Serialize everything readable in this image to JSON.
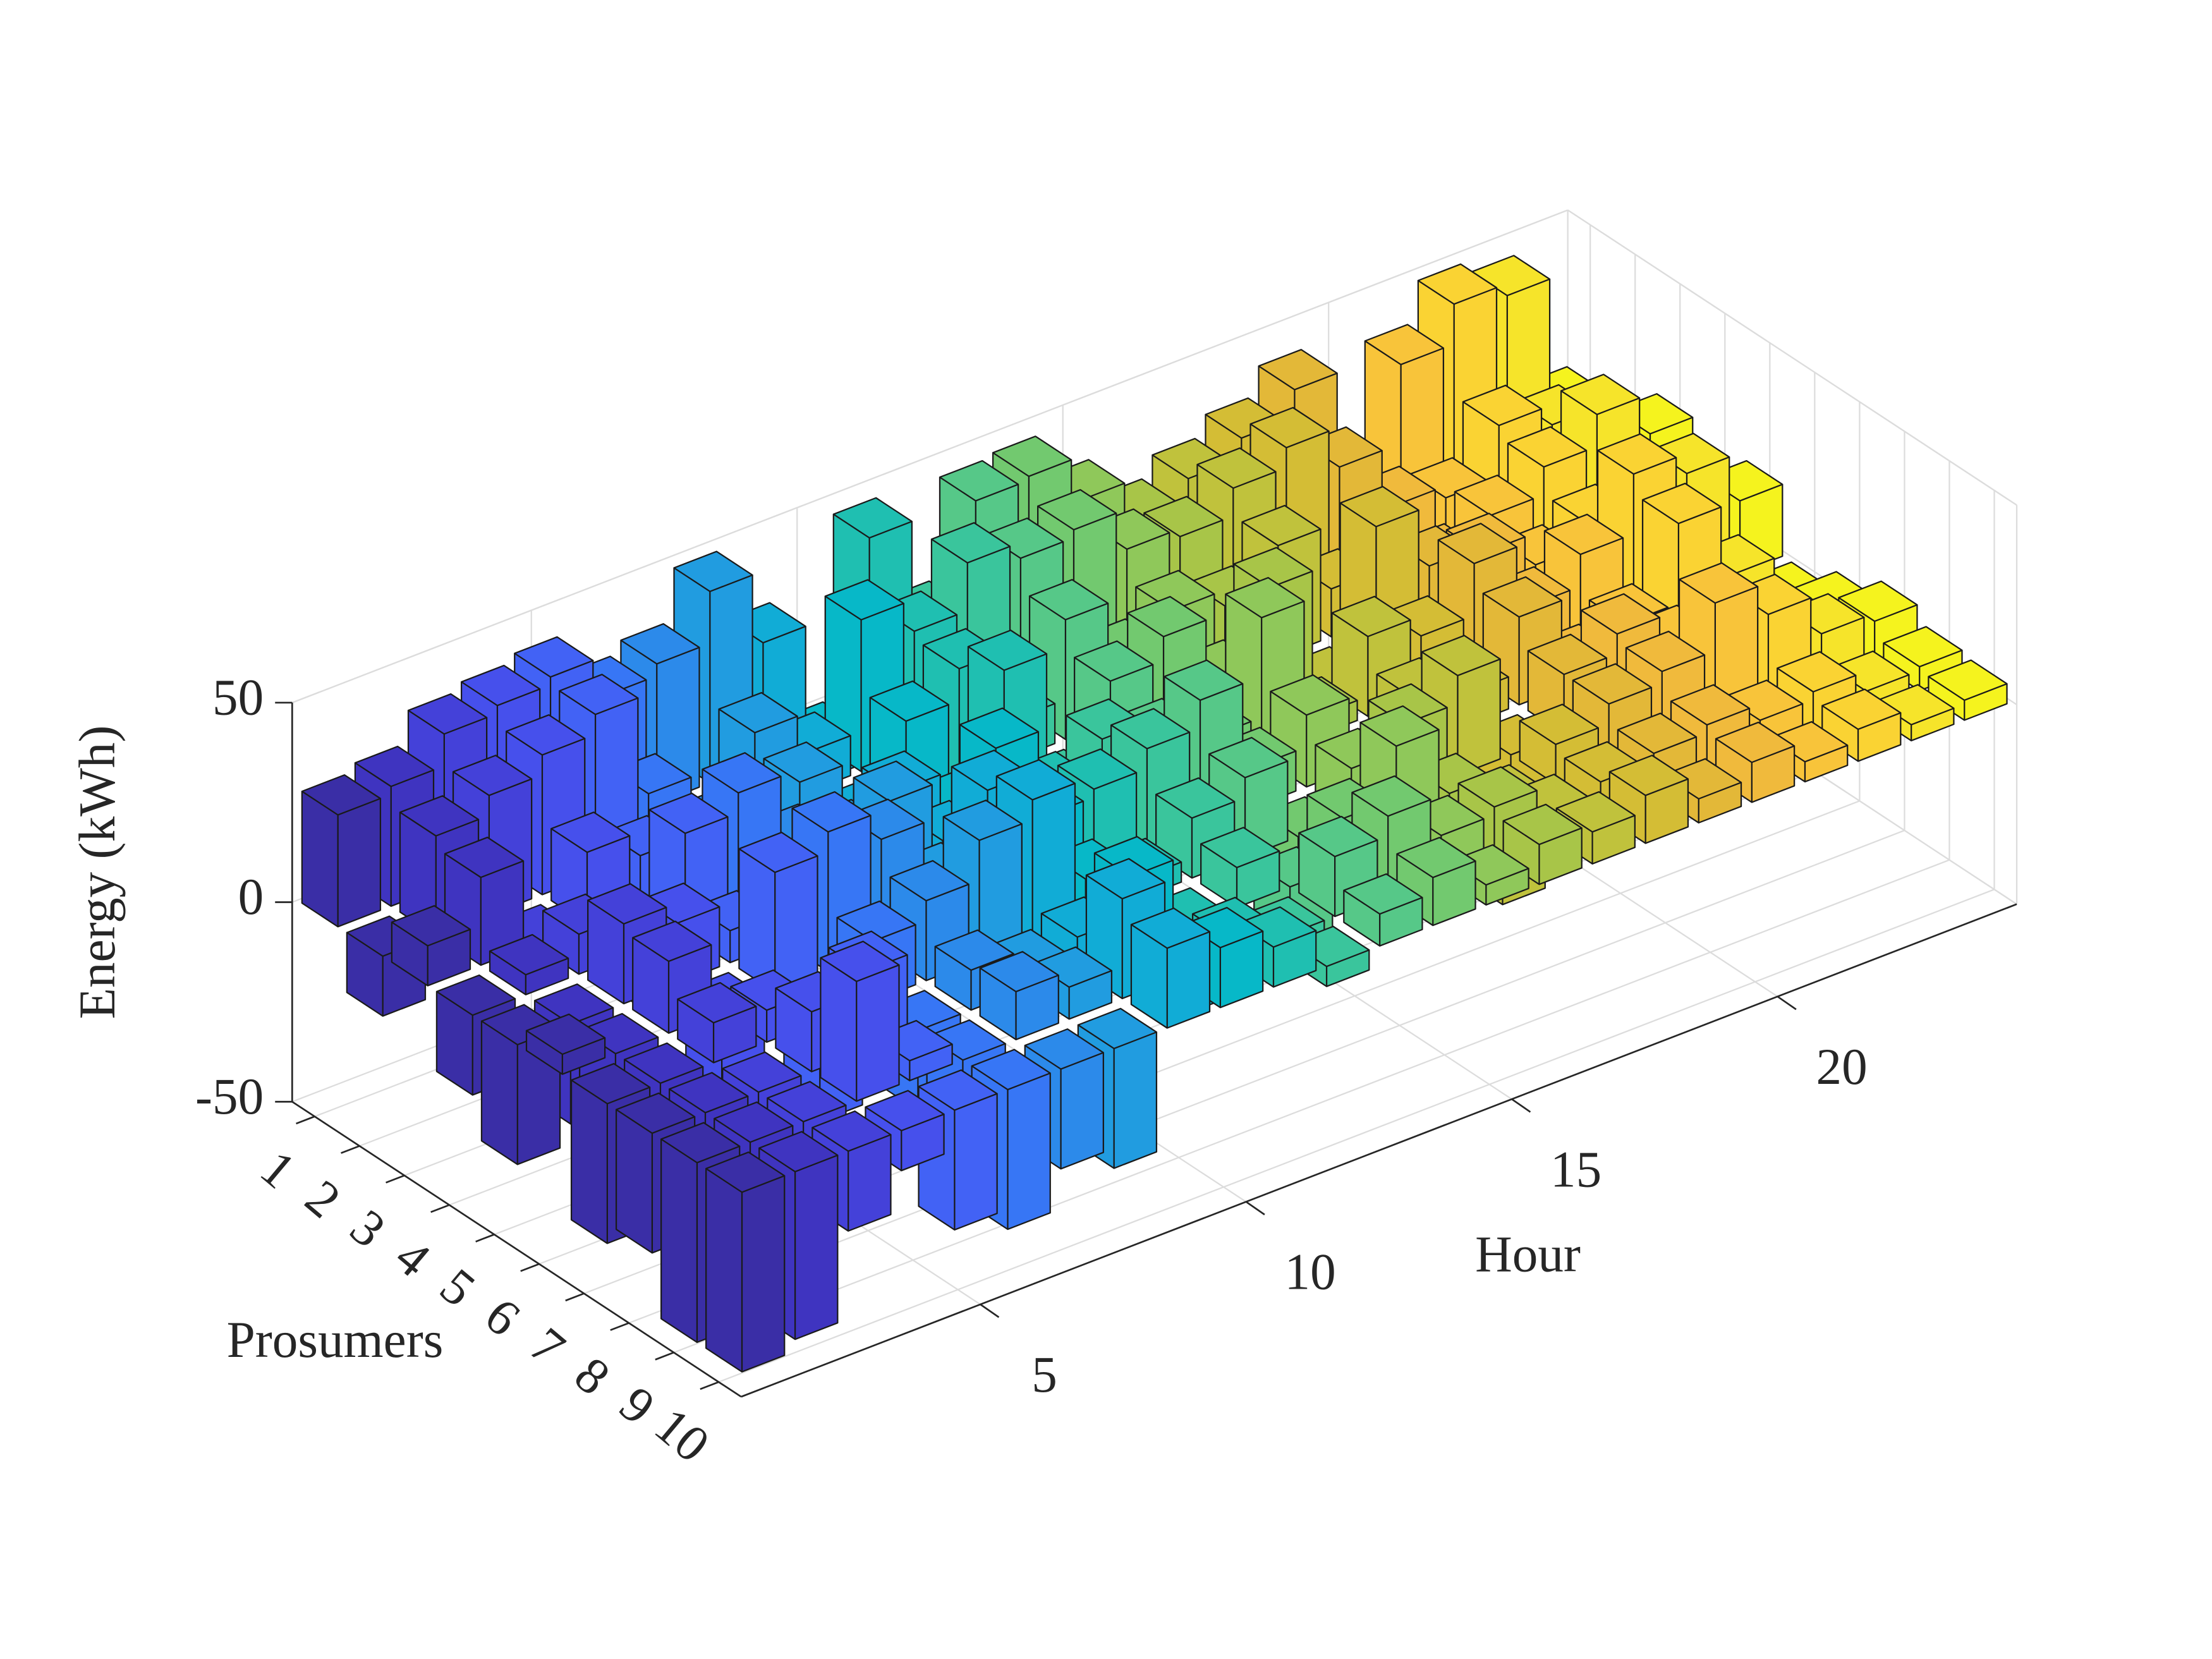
{
  "chart_data": {
    "type": "bar3d",
    "xlabel": "Hour",
    "ylabel": "Prosumers",
    "zlabel": "Energy (kWh)",
    "x": [
      1,
      2,
      3,
      4,
      5,
      6,
      7,
      8,
      9,
      10,
      11,
      12,
      13,
      14,
      15,
      16,
      17,
      18,
      19,
      20,
      21,
      22,
      23,
      24
    ],
    "y": [
      1,
      2,
      3,
      4,
      5,
      6,
      7,
      8,
      9,
      10
    ],
    "xlim": [
      0.5,
      24.5
    ],
    "ylim": [
      0.5,
      10.5
    ],
    "zlim": [
      -50,
      50
    ],
    "xticks": [
      5,
      10,
      15,
      20
    ],
    "yticks": [
      1,
      2,
      3,
      4,
      5,
      6,
      7,
      8,
      9,
      10
    ],
    "zticks": [
      -50,
      0,
      50
    ],
    "grid": true,
    "colors": [
      "#3a2ea6",
      "#3f34c0",
      "#4441d9",
      "#4650ec",
      "#4262f5",
      "#3776f5",
      "#2c8aea",
      "#219ce0",
      "#11acd6",
      "#07b8c8",
      "#1fbfb1",
      "#3ac59c",
      "#56c888",
      "#72c96f",
      "#8fc85a",
      "#a8c548",
      "#c0c23c",
      "#d4bd35",
      "#e3b838",
      "#f0ba3c",
      "#f8c43a",
      "#fad333",
      "#f6e42a",
      "#f5f31e"
    ],
    "values": [
      [
        28,
        30,
        38,
        40,
        42,
        32,
        35,
        48,
        30,
        -10,
        46,
        20,
        45,
        46,
        35,
        25,
        30,
        35,
        42,
        10,
        38,
        48,
        45,
        12
      ],
      [
        -15,
        25,
        30,
        35,
        40,
        15,
        -20,
        20,
        10,
        38,
        30,
        42,
        38,
        40,
        30,
        28,
        35,
        40,
        30,
        15,
        12,
        25,
        20,
        8
      ],
      [
        10,
        22,
        -5,
        18,
        12,
        8,
        5,
        15,
        -8,
        20,
        28,
        10,
        30,
        15,
        22,
        18,
        28,
        12,
        10,
        8,
        15,
        22,
        30,
        20
      ],
      [
        -20,
        5,
        10,
        -12,
        25,
        30,
        12,
        8,
        15,
        5,
        35,
        -10,
        22,
        28,
        12,
        30,
        -8,
        35,
        20,
        18,
        10,
        15,
        20,
        6
      ],
      [
        -30,
        -25,
        20,
        15,
        8,
        12,
        18,
        25,
        10,
        28,
        12,
        20,
        15,
        10,
        35,
        5,
        20,
        15,
        28,
        12,
        20,
        35,
        30,
        18
      ],
      [
        5,
        -30,
        18,
        -20,
        30,
        35,
        28,
        12,
        30,
        18,
        20,
        25,
        32,
        10,
        18,
        -15,
        12,
        8,
        22,
        5,
        10,
        30,
        12,
        -15
      ],
      [
        -35,
        -12,
        10,
        8,
        -25,
        15,
        20,
        30,
        35,
        10,
        5,
        15,
        20,
        -20,
        12,
        18,
        25,
        -30,
        15,
        20,
        12,
        10,
        8,
        5
      ],
      [
        -30,
        -40,
        -15,
        15,
        20,
        -20,
        10,
        5,
        8,
        18,
        -5,
        10,
        -15,
        12,
        25,
        8,
        -25,
        10,
        15,
        18,
        30,
        22,
        12,
        10
      ],
      [
        -45,
        -8,
        -20,
        30,
        5,
        -25,
        12,
        8,
        25,
        -10,
        5,
        -8,
        15,
        20,
        10,
        12,
        5,
        8,
        10,
        12,
        8,
        10,
        5,
        6
      ],
      [
        -45,
        -42,
        -20,
        -10,
        -30,
        -35,
        -25,
        -30,
        20,
        15,
        10,
        -5,
        8,
        12,
        5,
        10,
        8,
        12,
        6,
        10,
        5,
        8,
        4,
        5
      ]
    ]
  }
}
